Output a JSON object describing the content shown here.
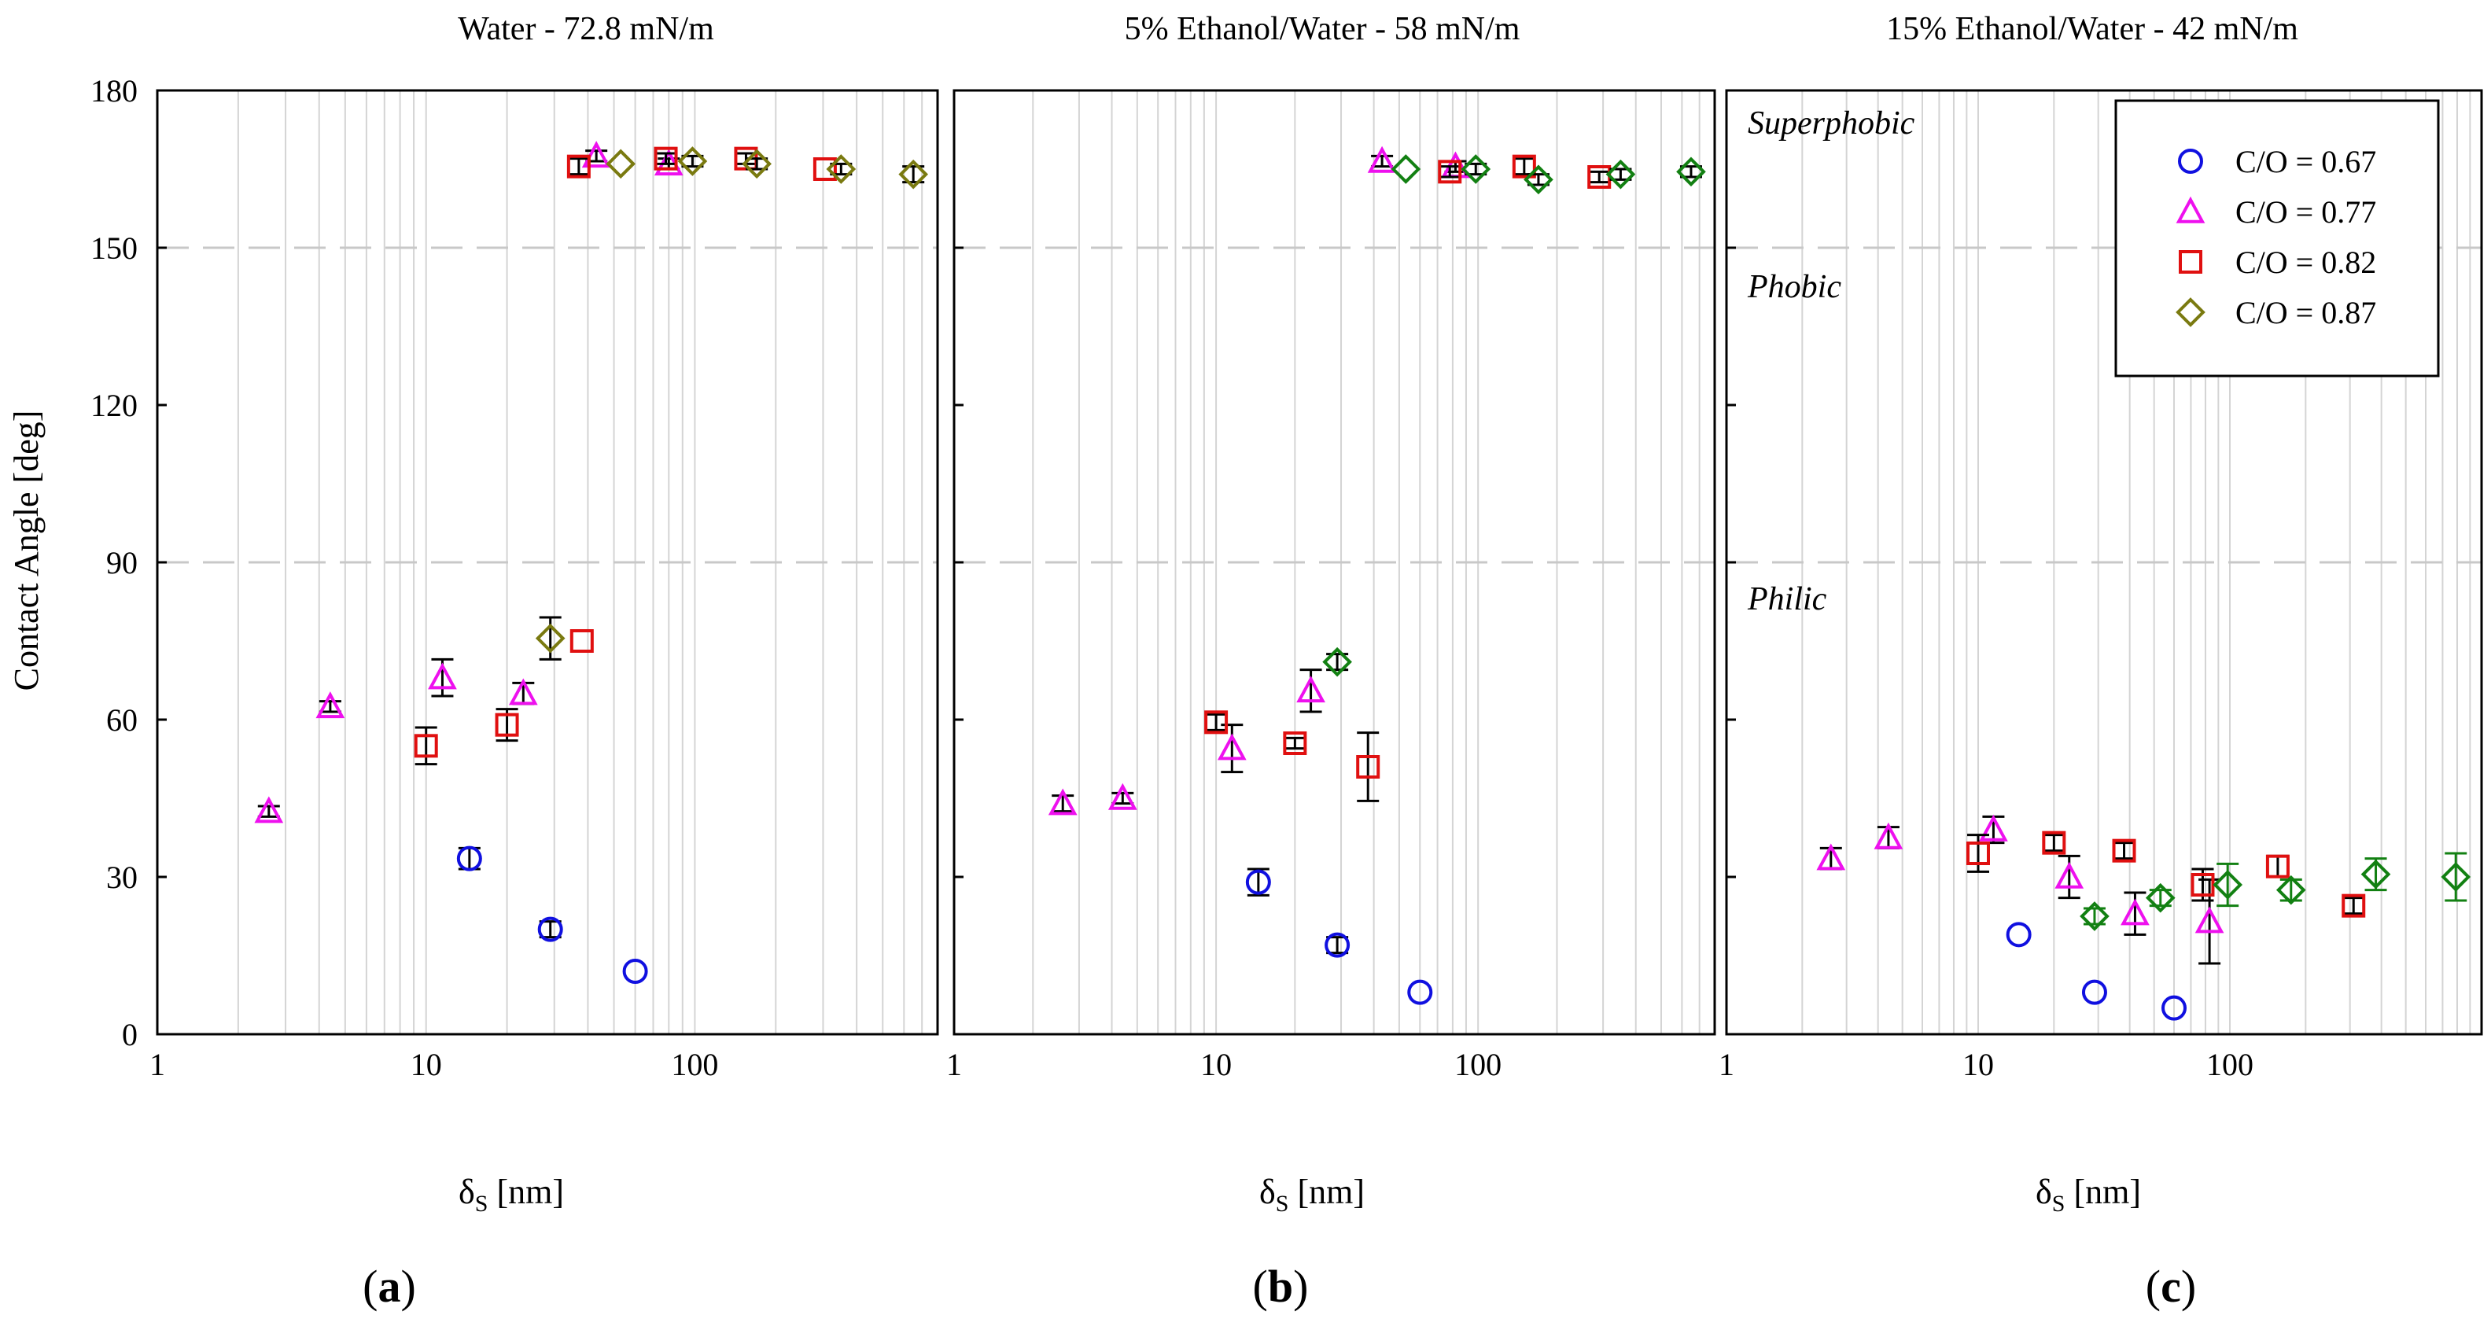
{
  "chart_data": [
    {
      "panel": "a",
      "type": "scatter",
      "title": "Water - 72.8 mN/m",
      "xlabel": "δS [nm]",
      "ylabel": "Contact Angle [deg]",
      "xscale": "log",
      "xlim": [
        1,
        800
      ],
      "ylim": [
        0,
        180
      ],
      "yticks": [
        0,
        30,
        60,
        90,
        120,
        150,
        180
      ],
      "xticks": [
        1,
        10,
        100
      ],
      "threshold_lines": [
        90,
        150
      ],
      "legend": null,
      "region_labels": [],
      "series": [
        {
          "name": "C/O = 0.67",
          "marker": "circle",
          "color": "#1010e0",
          "errcolor": "#000000",
          "x": [
            14.5,
            29,
            60
          ],
          "y": [
            33.5,
            20,
            12
          ],
          "err": [
            2,
            1.5,
            0
          ]
        },
        {
          "name": "C/O = 0.77",
          "marker": "triangle",
          "color": "#ee10ee",
          "errcolor": "#000000",
          "x": [
            2.6,
            4.4,
            11.5,
            23,
            43,
            80
          ],
          "y": [
            42.5,
            62.5,
            68,
            65,
            167.5,
            166
          ],
          "err": [
            1,
            1,
            3.5,
            2,
            1,
            1
          ]
        },
        {
          "name": "C/O = 0.82",
          "marker": "square",
          "color": "#e01010",
          "errcolor": "#000000",
          "x": [
            10,
            20,
            38,
            37,
            78,
            155,
            305
          ],
          "y": [
            55,
            59,
            75,
            165.5,
            167,
            167,
            165
          ],
          "err": [
            3.5,
            3,
            0,
            1.5,
            1,
            1,
            0
          ]
        },
        {
          "name": "C/O = 0.87",
          "marker": "diamond",
          "color": "#7a7a10",
          "errcolor": "#000000",
          "x": [
            29,
            53,
            98,
            170,
            350,
            650
          ],
          "y": [
            75.5,
            166,
            166.5,
            166,
            165,
            164
          ],
          "err": [
            4,
            0,
            1,
            1,
            1,
            1.5
          ]
        }
      ]
    },
    {
      "panel": "b",
      "type": "scatter",
      "title": "5% Ethanol/Water - 58 mN/m",
      "xlabel": "δS [nm]",
      "ylabel": "",
      "xscale": "log",
      "xlim": [
        1,
        800
      ],
      "ylim": [
        0,
        180
      ],
      "xticks": [
        1,
        10,
        100
      ],
      "threshold_lines": [
        90,
        150
      ],
      "legend": null,
      "region_labels": [],
      "series": [
        {
          "name": "C/O = 0.67",
          "marker": "circle",
          "color": "#1010e0",
          "errcolor": "#000000",
          "x": [
            14.5,
            29,
            60
          ],
          "y": [
            29,
            17,
            8
          ],
          "err": [
            2.5,
            1.5,
            0
          ]
        },
        {
          "name": "C/O = 0.77",
          "marker": "triangle",
          "color": "#ee10ee",
          "errcolor": "#000000",
          "x": [
            2.6,
            4.4,
            11.5,
            23,
            43,
            82
          ],
          "y": [
            44,
            45,
            54.5,
            65.5,
            166.5,
            165.5
          ],
          "err": [
            1.5,
            1,
            4.5,
            4,
            1,
            1
          ]
        },
        {
          "name": "C/O = 0.82",
          "marker": "square",
          "color": "#e01010",
          "errcolor": "#000000",
          "x": [
            10,
            20,
            38,
            78,
            150,
            290
          ],
          "y": [
            59.5,
            55.5,
            51,
            164.5,
            165.5,
            163.5
          ],
          "err": [
            1.5,
            1,
            6.5,
            1,
            1.5,
            1
          ]
        },
        {
          "name": "C/O = 0.87",
          "marker": "diamond",
          "color": "#128012",
          "errcolor": "#000000",
          "x": [
            29,
            53,
            98,
            170,
            350,
            650
          ],
          "y": [
            71,
            165,
            165,
            163,
            164,
            164.5
          ],
          "err": [
            1.5,
            0,
            1,
            1,
            1,
            1
          ]
        }
      ]
    },
    {
      "panel": "c",
      "type": "scatter",
      "title": "15% Ethanol/Water - 42 mN/m",
      "xlabel": "δS [nm]",
      "ylabel": "",
      "xscale": "log",
      "xlim": [
        1,
        1000
      ],
      "ylim": [
        0,
        180
      ],
      "xticks": [
        1,
        10,
        100
      ],
      "threshold_lines": [
        90,
        150
      ],
      "legend": "top-right",
      "region_labels": [
        "Superphobic",
        "Phobic",
        "Philic"
      ],
      "series": [
        {
          "name": "C/O = 0.67",
          "marker": "circle",
          "color": "#1010e0",
          "errcolor": "#000000",
          "x": [
            14.5,
            29,
            60
          ],
          "y": [
            19,
            8,
            5
          ],
          "err": [
            0,
            0,
            0
          ]
        },
        {
          "name": "C/O = 0.77",
          "marker": "triangle",
          "color": "#ee10ee",
          "errcolor": "#000000",
          "x": [
            2.6,
            4.4,
            11.5,
            23,
            42,
            83
          ],
          "y": [
            33.5,
            37.5,
            39,
            30,
            23,
            21.5
          ],
          "err": [
            2,
            2,
            2.5,
            4,
            4,
            8
          ]
        },
        {
          "name": "C/O = 0.82",
          "marker": "square",
          "color": "#e01010",
          "errcolor": "#000000",
          "x": [
            10,
            20,
            38,
            78,
            155,
            310
          ],
          "y": [
            34.5,
            36.5,
            35,
            28.5,
            32,
            24.5
          ],
          "err": [
            3.5,
            1.5,
            1.5,
            3,
            2,
            1.5
          ]
        },
        {
          "name": "C/O = 0.87",
          "marker": "diamond",
          "color": "#128012",
          "errcolor": "#128012",
          "x": [
            29,
            53,
            98,
            175,
            380,
            790
          ],
          "y": [
            22.5,
            26,
            28.5,
            27.5,
            30.5,
            30
          ],
          "err": [
            1.5,
            1.5,
            4,
            2,
            3,
            4.5
          ]
        }
      ]
    }
  ],
  "legend": {
    "entries": [
      {
        "label": "C/O = 0.67",
        "marker": "circle",
        "color": "#1010e0"
      },
      {
        "label": "C/O = 0.77",
        "marker": "triangle",
        "color": "#ee10ee"
      },
      {
        "label": "C/O = 0.82",
        "marker": "square",
        "color": "#e01010"
      },
      {
        "label": "C/O = 0.87",
        "marker": "diamond",
        "color": "#7a7a10"
      }
    ]
  },
  "panel_labels": [
    "a",
    "b",
    "c"
  ],
  "xlabel_main": "δ",
  "xlabel_sub": "S",
  "xlabel_unit": " [nm]"
}
